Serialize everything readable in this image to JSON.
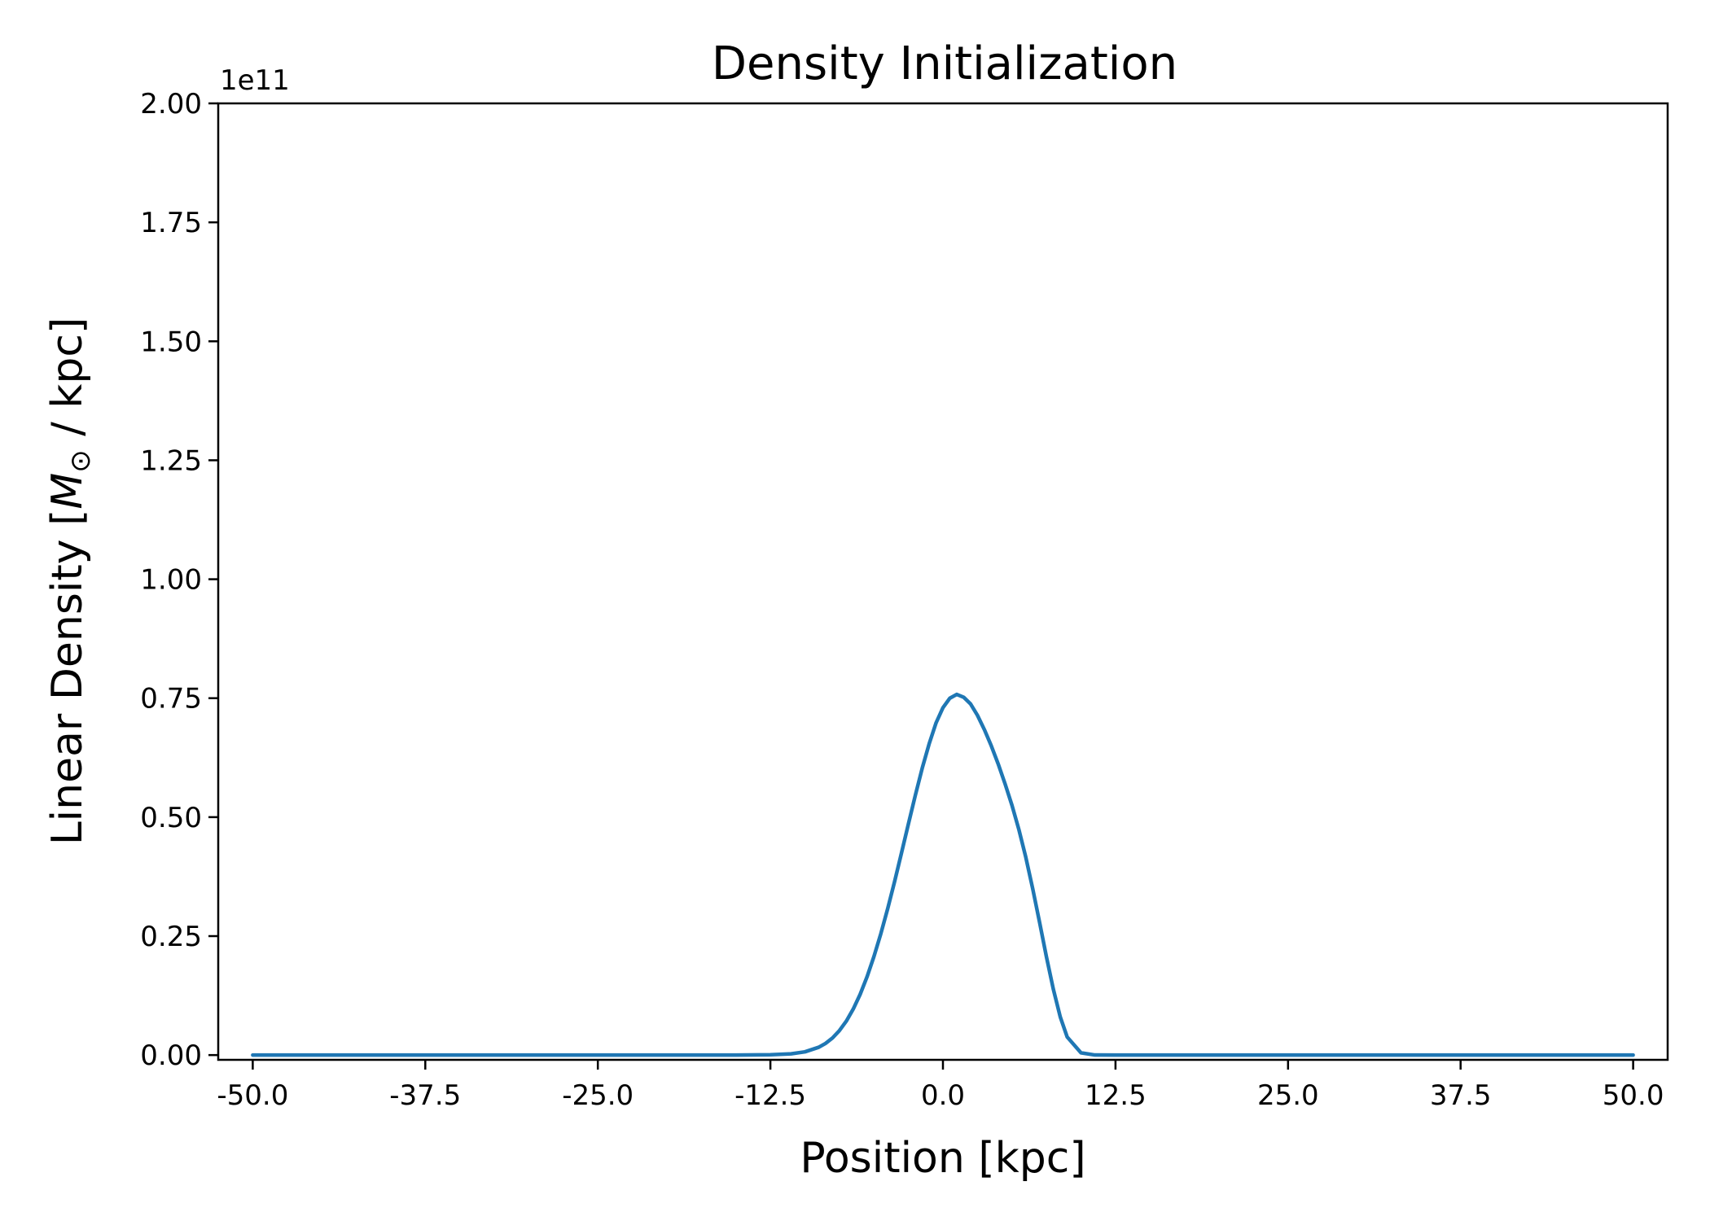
{
  "chart_data": {
    "type": "line",
    "title": "Density Initialization",
    "xlabel": "Position [kpc]",
    "ylabel": {
      "prefix": "Linear Density [",
      "symbol": "M",
      "subscript": "⊙",
      "suffix": " / kpc]"
    },
    "y_offset_label": "1e11",
    "xlim": [
      -52.5,
      52.5
    ],
    "ylim": [
      -0.01,
      2.0
    ],
    "x_ticks": [
      -50.0,
      -37.5,
      -25.0,
      -12.5,
      0.0,
      12.5,
      25.0,
      37.5,
      50.0
    ],
    "x_tick_labels": [
      "-50.0",
      "-37.5",
      "-25.0",
      "-12.5",
      "0.0",
      "12.5",
      "25.0",
      "37.5",
      "50.0"
    ],
    "y_ticks": [
      0.0,
      0.25,
      0.5,
      0.75,
      1.0,
      1.25,
      1.5,
      1.75,
      2.0
    ],
    "y_tick_labels": [
      "0.00",
      "0.25",
      "0.50",
      "0.75",
      "1.00",
      "1.25",
      "1.50",
      "1.75",
      "2.00"
    ],
    "grid": false,
    "series_color": "#1f77b4",
    "series": [
      {
        "x": [
          -50,
          -40,
          -30,
          -20,
          -15,
          -12.5,
          -11,
          -10,
          -9,
          -8.5,
          -8,
          -7.5,
          -7,
          -6.5,
          -6,
          -5.5,
          -5,
          -4.5,
          -4,
          -3.5,
          -3,
          -2.5,
          -2,
          -1.5,
          -1,
          -0.5,
          0,
          0.5,
          1,
          1.5,
          2,
          2.5,
          3,
          3.5,
          4,
          4.5,
          5,
          5.5,
          6,
          6.5,
          7,
          7.5,
          8,
          8.5,
          9,
          10,
          11,
          12.5,
          15,
          20,
          30,
          40,
          50
        ],
        "y": [
          0,
          0,
          0,
          0,
          0,
          0.0006,
          0.0026,
          0.0068,
          0.0164,
          0.0246,
          0.036,
          0.0514,
          0.0713,
          0.0966,
          0.1275,
          0.1643,
          0.207,
          0.255,
          0.308,
          0.365,
          0.425,
          0.486,
          0.546,
          0.603,
          0.654,
          0.698,
          0.73,
          0.75,
          0.758,
          0.752,
          0.738,
          0.714,
          0.684,
          0.65,
          0.612,
          0.57,
          0.525,
          0.474,
          0.416,
          0.35,
          0.279,
          0.206,
          0.138,
          0.08,
          0.038,
          0.0048,
          0.0002,
          0,
          0,
          0,
          0,
          0,
          0
        ]
      }
    ]
  }
}
